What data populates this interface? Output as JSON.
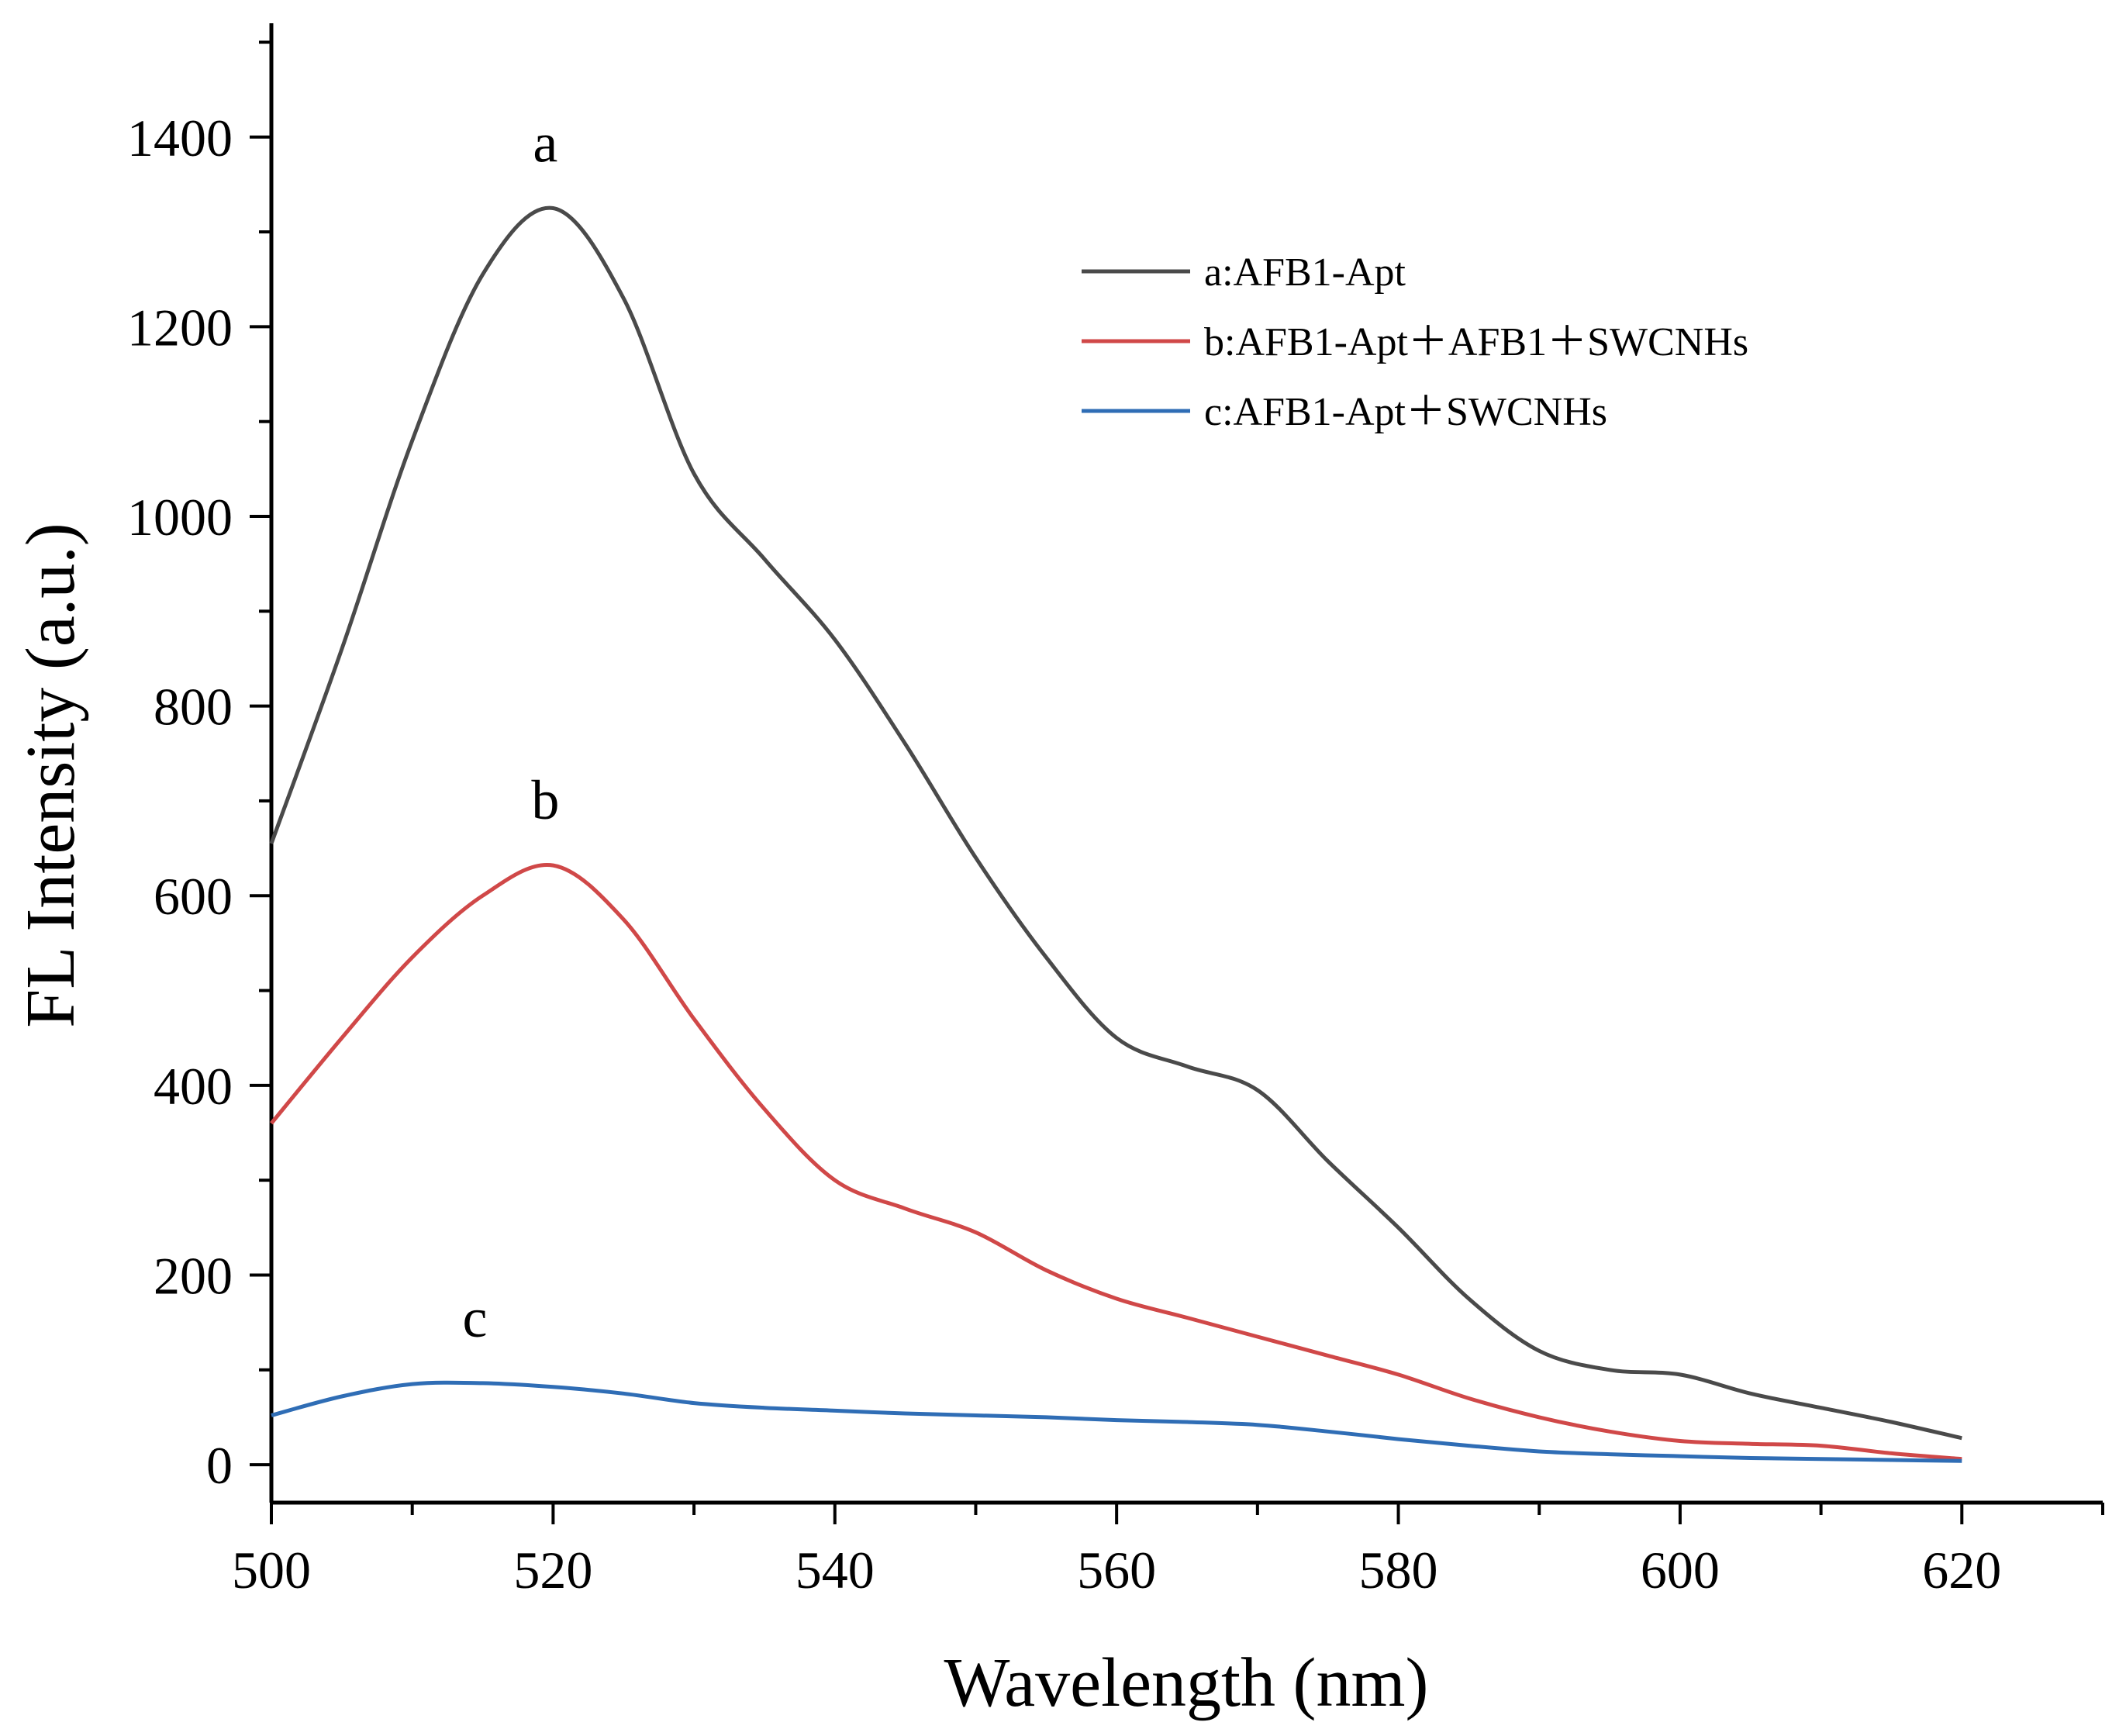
{
  "chart_data": {
    "type": "line",
    "title": "",
    "xlabel": "Wavelength (nm)",
    "ylabel": "FL Intensity (a.u.)",
    "xlim": [
      500,
      630
    ],
    "ylim": [
      -40,
      1520
    ],
    "xticks": [
      500,
      520,
      540,
      560,
      580,
      600,
      620
    ],
    "yticks": [
      0,
      200,
      400,
      600,
      800,
      1000,
      1200,
      1400
    ],
    "x_minor_step": 10,
    "y_minor_step": 100,
    "grid": false,
    "legend_position": "top-right",
    "series": [
      {
        "name": "a:AFB1-Apt",
        "label": "a",
        "color": "#4a4a4a",
        "x": [
          500,
          505,
          510,
          515,
          520,
          525,
          530,
          535,
          540,
          545,
          550,
          555,
          560,
          565,
          570,
          575,
          580,
          585,
          590,
          595,
          600,
          605,
          610,
          615,
          620
        ],
        "y": [
          655,
          860,
          1080,
          1255,
          1325,
          1230,
          1045,
          955,
          870,
          760,
          640,
          535,
          450,
          420,
          395,
          320,
          250,
          175,
          120,
          100,
          95,
          75,
          60,
          45,
          28
        ]
      },
      {
        "name": "b:AFB1-Apt＋AFB1＋SWCNHs",
        "label": "b",
        "color": "#d04848",
        "x": [
          500,
          505,
          510,
          515,
          520,
          525,
          530,
          535,
          540,
          545,
          550,
          555,
          560,
          565,
          570,
          575,
          580,
          585,
          590,
          595,
          600,
          605,
          610,
          615,
          620
        ],
        "y": [
          360,
          450,
          535,
          600,
          632,
          575,
          470,
          375,
          300,
          270,
          245,
          205,
          175,
          155,
          135,
          115,
          95,
          70,
          50,
          35,
          25,
          22,
          20,
          12,
          6
        ]
      },
      {
        "name": "c:AFB1-Apt＋SWCNHs",
        "label": "c",
        "color": "#2f6db5",
        "x": [
          500,
          505,
          510,
          515,
          520,
          525,
          530,
          535,
          540,
          545,
          550,
          555,
          560,
          565,
          570,
          575,
          580,
          585,
          590,
          595,
          600,
          605,
          610,
          615,
          620
        ],
        "y": [
          52,
          72,
          85,
          86,
          82,
          75,
          65,
          60,
          57,
          54,
          52,
          50,
          47,
          45,
          42,
          35,
          27,
          20,
          14,
          11,
          9,
          7,
          6,
          5,
          4
        ]
      }
    ]
  }
}
